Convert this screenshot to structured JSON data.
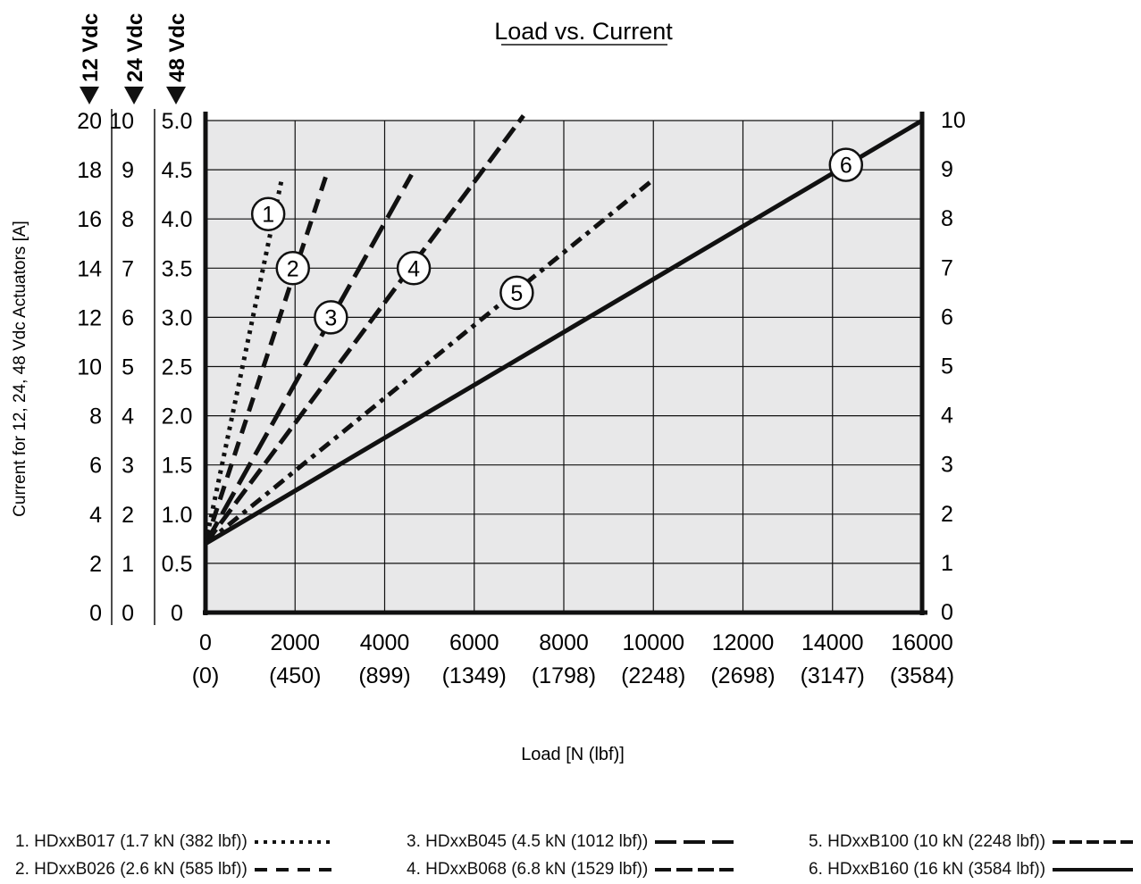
{
  "chart_data": {
    "type": "line",
    "title": "Load vs. Current",
    "xlabel": "Load [N (lbf)]",
    "ylabel": "Current for 12, 24, 48 Vdc Actuators  [A]",
    "xlim": [
      0,
      16000
    ],
    "ylim": [
      0,
      10
    ],
    "grid": true,
    "x_ticks": [
      {
        "value": 0,
        "label": "0",
        "sublabel": "(0)"
      },
      {
        "value": 2000,
        "label": "2000",
        "sublabel": "(450)"
      },
      {
        "value": 4000,
        "label": "4000",
        "sublabel": "(899)"
      },
      {
        "value": 6000,
        "label": "6000",
        "sublabel": "(1349)"
      },
      {
        "value": 8000,
        "label": "8000",
        "sublabel": "(1798)"
      },
      {
        "value": 10000,
        "label": "10000",
        "sublabel": "(2248)"
      },
      {
        "value": 12000,
        "label": "12000",
        "sublabel": "(2698)"
      },
      {
        "value": 14000,
        "label": "14000",
        "sublabel": "(3147)"
      },
      {
        "value": 16000,
        "label": "16000",
        "sublabel": "(3584)"
      }
    ],
    "voltage_scales": [
      {
        "name": "12 Vdc",
        "ticks": [
          "0",
          "2",
          "4",
          "6",
          "8",
          "10",
          "12",
          "14",
          "16",
          "18",
          "20"
        ]
      },
      {
        "name": "24 Vdc",
        "ticks": [
          "0",
          "1",
          "2",
          "3",
          "4",
          "5",
          "6",
          "7",
          "8",
          "9",
          "10"
        ]
      },
      {
        "name": "48 Vdc",
        "ticks": [
          "0",
          "0.5",
          "1.0",
          "1.5",
          "2.0",
          "2.5",
          "3.0",
          "3.5",
          "4.0",
          "4.5",
          "5.0"
        ]
      }
    ],
    "right_ticks": [
      "0",
      "1",
      "2",
      "3",
      "4",
      "5",
      "6",
      "7",
      "8",
      "9",
      "10"
    ],
    "series": [
      {
        "id": "1",
        "name": "1. HDxxB017 (1.7 kN (382 lbf))",
        "dash": "4,6",
        "x": [
          0,
          1700
        ],
        "y": [
          1.4,
          8.8
        ],
        "marker": [
          1400,
          8.1
        ]
      },
      {
        "id": "2",
        "name": "2. HDxxB026 (2.6 kN (585 lbf))",
        "dash": "16,10",
        "x": [
          0,
          2700
        ],
        "y": [
          1.4,
          8.9
        ],
        "marker": [
          1950,
          7.0
        ]
      },
      {
        "id": "3",
        "name": "3. HDxxB045 (4.5 kN (1012 lbf))",
        "dash": "28,10",
        "x": [
          0,
          4600
        ],
        "y": [
          1.4,
          8.9
        ],
        "marker": [
          2800,
          6.0
        ]
      },
      {
        "id": "4",
        "name": "4. HDxxB068 (6.8 kN (1529 lbf))",
        "dash": "20,8",
        "x": [
          0,
          7100
        ],
        "y": [
          1.4,
          10.1
        ],
        "marker": [
          4650,
          7.0
        ]
      },
      {
        "id": "5",
        "name": "5. HDxxB100 (10 kN (2248 lbf))",
        "dash": "14,7,5,7",
        "x": [
          0,
          10000
        ],
        "y": [
          1.4,
          8.8
        ],
        "marker": [
          6950,
          6.5
        ]
      },
      {
        "id": "6",
        "name": "6. HDxxB160 (16 kN (3584 lbf))",
        "dash": "",
        "x": [
          0,
          16000
        ],
        "y": [
          1.4,
          10.0
        ],
        "marker": [
          14300,
          9.1
        ]
      }
    ]
  }
}
